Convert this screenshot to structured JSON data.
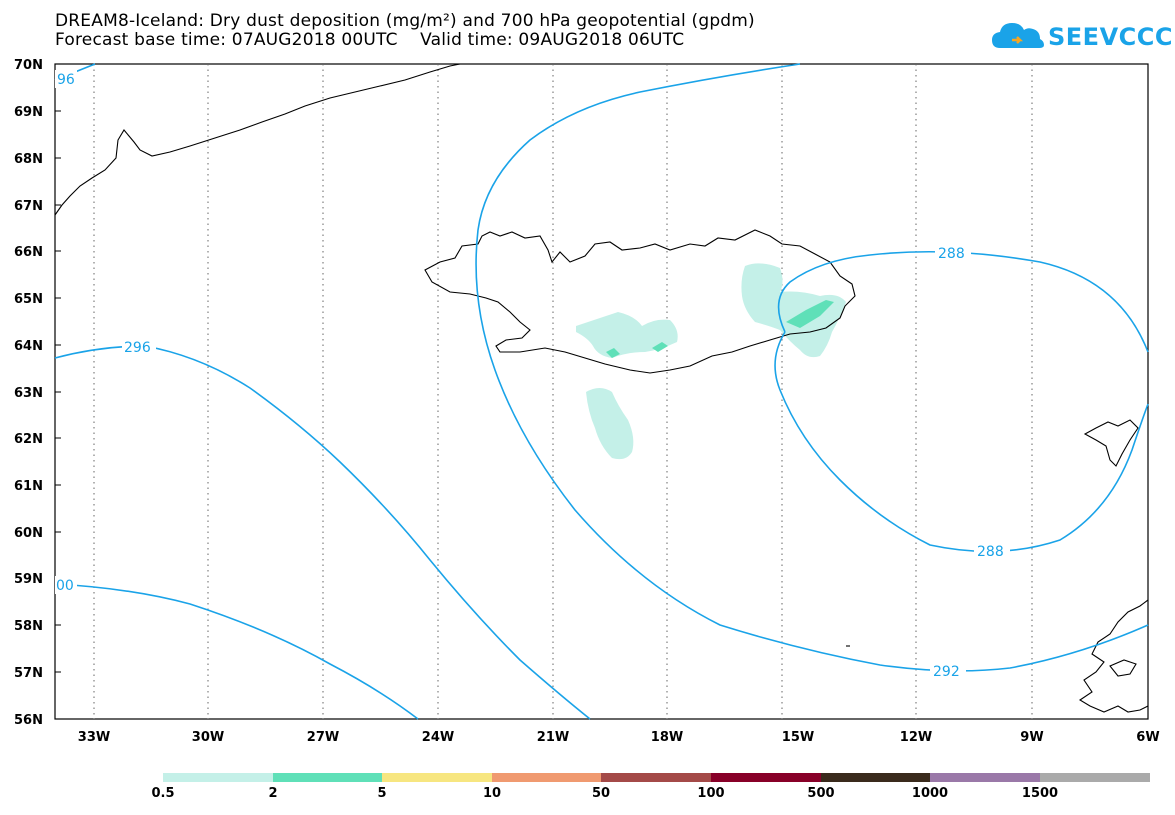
{
  "title": {
    "line1": "DREAM8-Iceland: Dry dust deposition (mg/m²) and 700 hPa geopotential (gpdm)",
    "line2": "Forecast base time: 07AUG2018 00UTC    Valid time: 09AUG2018 06UTC"
  },
  "logo": {
    "text": "SEEVCCC",
    "icon": "cloud-icon"
  },
  "axes": {
    "lat_labels": [
      "70N",
      "69N",
      "68N",
      "67N",
      "66N",
      "65N",
      "64N",
      "63N",
      "62N",
      "61N",
      "60N",
      "59N",
      "58N",
      "57N",
      "56N"
    ],
    "lon_labels": [
      "33W",
      "30W",
      "27W",
      "24W",
      "21W",
      "18W",
      "15W",
      "12W",
      "9W",
      "6W"
    ]
  },
  "contours": {
    "labels": [
      "96",
      "296",
      "00",
      "292",
      "288",
      "288"
    ]
  },
  "colorbar": {
    "colors": [
      "#c4f0e8",
      "#5fe0b8",
      "#f7e680",
      "#f09a70",
      "#a44a48",
      "#880028",
      "#3a2a1c",
      "#9a78a8",
      "#aaaaaa"
    ],
    "labels": [
      "0.5",
      "2",
      "5",
      "10",
      "50",
      "100",
      "500",
      "1000",
      "1500"
    ]
  }
}
